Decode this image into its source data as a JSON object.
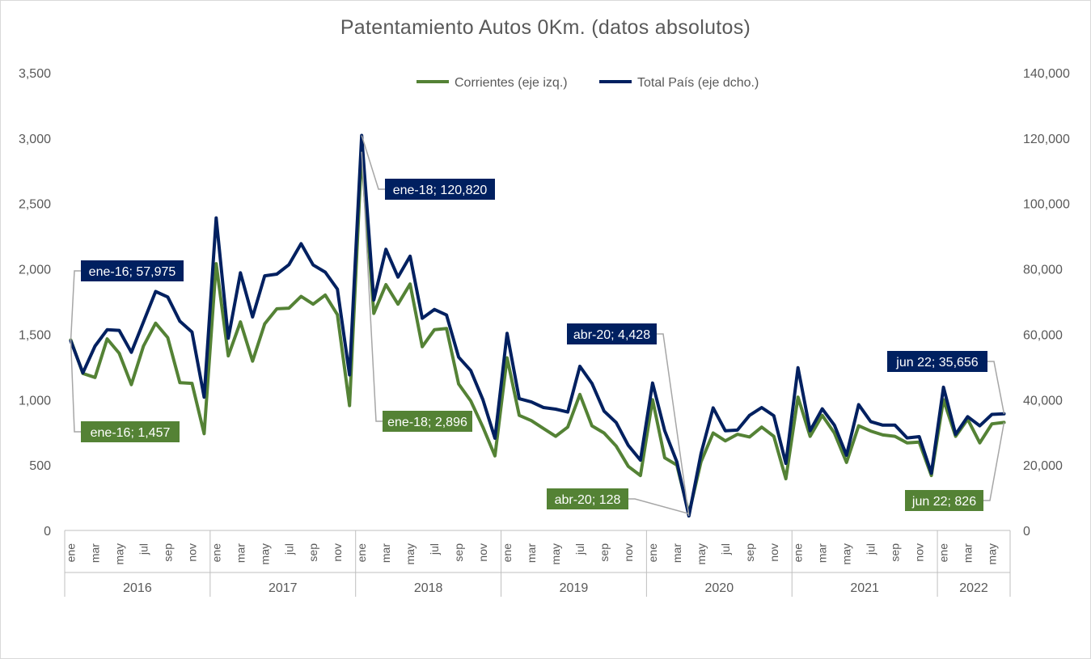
{
  "chart_data": {
    "type": "line",
    "title": "Patentamiento Autos 0Km. (datos absolutos)",
    "y_left": {
      "ylim": [
        0,
        3500
      ],
      "ticks": [
        "0",
        "500",
        "1,000",
        "1,500",
        "2,000",
        "2,500",
        "3,000",
        "3,500"
      ],
      "tick_values": [
        0,
        500,
        1000,
        1500,
        2000,
        2500,
        3000,
        3500
      ]
    },
    "y_right": {
      "ylim": [
        0,
        140000
      ],
      "ticks": [
        "0",
        "20,000",
        "40,000",
        "60,000",
        "80,000",
        "100,000",
        "120,000",
        "140,000"
      ],
      "tick_values": [
        0,
        20000,
        40000,
        60000,
        80000,
        100000,
        120000,
        140000
      ]
    },
    "years": [
      {
        "label": "2016",
        "start": 0,
        "count": 12
      },
      {
        "label": "2017",
        "start": 12,
        "count": 12
      },
      {
        "label": "2018",
        "start": 24,
        "count": 12
      },
      {
        "label": "2019",
        "start": 36,
        "count": 12
      },
      {
        "label": "2020",
        "start": 48,
        "count": 12
      },
      {
        "label": "2021",
        "start": 60,
        "count": 12
      },
      {
        "label": "2022",
        "start": 72,
        "count": 6
      }
    ],
    "month_ticks": [
      "ene",
      "",
      "mar",
      "",
      "may",
      "",
      "jul",
      "",
      "sep",
      "",
      "nov",
      ""
    ],
    "legend": {
      "placement": "top-center"
    },
    "series": [
      {
        "name": "Corrientes (eje izq.)",
        "axis": "left",
        "color": "#548235",
        "values": [
          1457,
          1200,
          1170,
          1465,
          1355,
          1115,
          1410,
          1585,
          1475,
          1130,
          1125,
          740,
          2040,
          1335,
          1595,
          1295,
          1580,
          1695,
          1700,
          1790,
          1730,
          1800,
          1650,
          955,
          2896,
          1660,
          1880,
          1730,
          1885,
          1405,
          1535,
          1545,
          1120,
          990,
          790,
          570,
          1320,
          880,
          840,
          780,
          720,
          790,
          1040,
          800,
          745,
          645,
          490,
          420,
          1000,
          555,
          500,
          128,
          525,
          745,
          685,
          735,
          715,
          790,
          720,
          395,
          1020,
          720,
          880,
          745,
          520,
          800,
          760,
          730,
          720,
          670,
          675,
          420,
          1000,
          720,
          850,
          670,
          815,
          826
        ]
      },
      {
        "name": "Total País (eje dcho.)",
        "axis": "right",
        "color": "#002060",
        "values": [
          57975,
          48200,
          56400,
          61400,
          61200,
          54500,
          63800,
          73100,
          71400,
          64000,
          60700,
          40800,
          95600,
          58800,
          78800,
          65300,
          77900,
          78400,
          81300,
          87700,
          81200,
          79000,
          73800,
          47600,
          120820,
          70500,
          86000,
          77500,
          83900,
          64900,
          67600,
          65900,
          53000,
          48900,
          40000,
          28200,
          60300,
          40300,
          39300,
          37600,
          37100,
          36200,
          50200,
          45000,
          36500,
          33000,
          26000,
          21500,
          45100,
          30500,
          21000,
          4428,
          23500,
          37500,
          30500,
          30700,
          35200,
          37600,
          35100,
          20500,
          49800,
          30500,
          37200,
          32200,
          23000,
          38500,
          33300,
          32200,
          32200,
          28300,
          28700,
          17500,
          43800,
          29400,
          34800,
          32000,
          35500,
          35656
        ]
      }
    ],
    "annotations": [
      {
        "label": "ene-16; 57,975",
        "series": 1,
        "index": 0
      },
      {
        "label": "ene-16; 1,457",
        "series": 0,
        "index": 0
      },
      {
        "label": "ene-18; 120,820",
        "series": 1,
        "index": 24
      },
      {
        "label": "ene-18; 2,896",
        "series": 0,
        "index": 24
      },
      {
        "label": "abr-20; 4,428",
        "series": 1,
        "index": 51
      },
      {
        "label": "abr-20; 128",
        "series": 0,
        "index": 51
      },
      {
        "label": "jun 22; 35,656",
        "series": 1,
        "index": 77
      },
      {
        "label": "jun 22; 826",
        "series": 0,
        "index": 77
      }
    ]
  }
}
